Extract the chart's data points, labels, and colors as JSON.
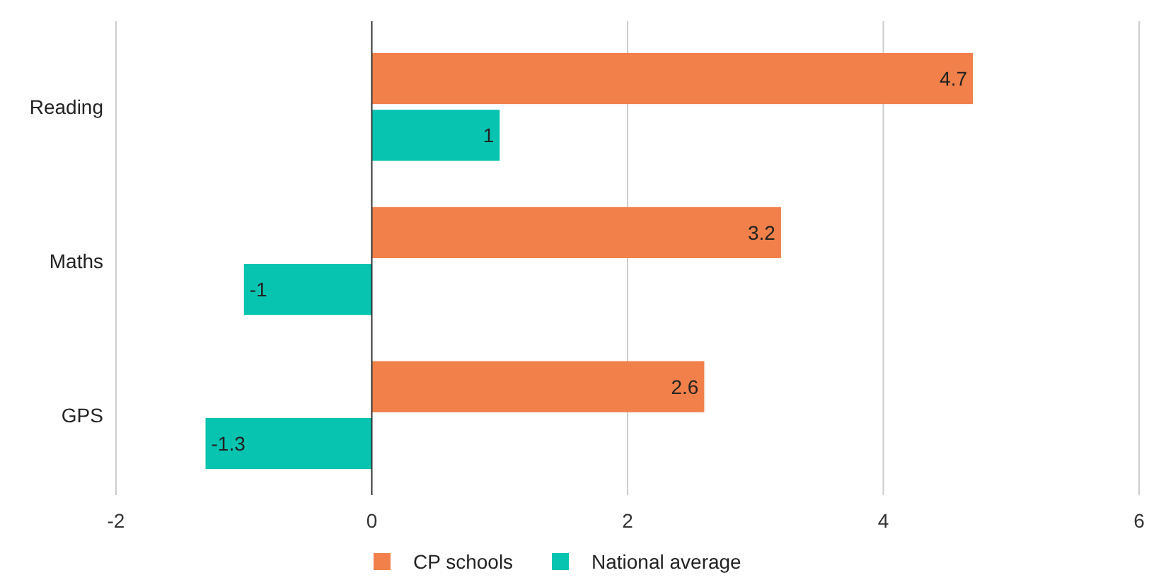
{
  "chart_data": {
    "type": "bar",
    "orientation": "horizontal",
    "categories": [
      "Reading",
      "Maths",
      "GPS"
    ],
    "series": [
      {
        "name": "CP schools",
        "color": "#f1804a",
        "values": [
          4.7,
          3.2,
          2.6
        ]
      },
      {
        "name": "National average",
        "color": "#06c4b0",
        "values": [
          1,
          -1,
          -1.3
        ]
      }
    ],
    "xlim": [
      -2,
      6
    ],
    "xticks": [
      -2,
      0,
      2,
      4,
      6
    ],
    "grid": "x",
    "legend": "bottom",
    "data_labels": true
  }
}
